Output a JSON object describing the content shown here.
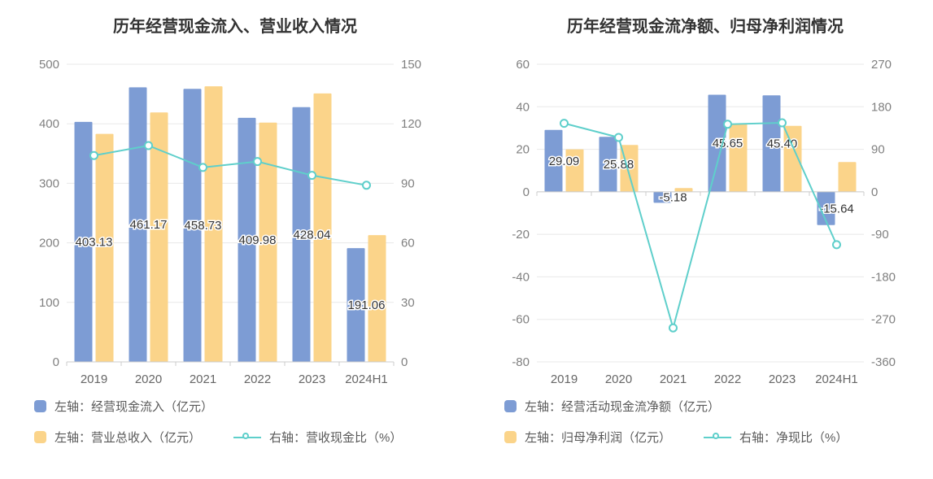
{
  "figure": {
    "background": "#ffffff"
  },
  "colors": {
    "bar_blue": "#7D9CD4",
    "bar_orange": "#FBD48A",
    "line_teal": "#5FCFCB",
    "title_text": "#333333",
    "axis_tick_text": "#808080",
    "category_text": "#666666",
    "bar_value_text": "#333333",
    "legend_text": "#595959",
    "gridline": "#e8e8e8",
    "axis_line": "#cccccc"
  },
  "chart_data": [
    {
      "type": "bar",
      "subtype": "grouped-bar-with-line",
      "title": "历年经营现金流入、营业收入情况",
      "categories": [
        "2019",
        "2020",
        "2021",
        "2022",
        "2023",
        "2024H1"
      ],
      "left_axis": {
        "min": 0,
        "max": 500,
        "ticks": [
          0,
          100,
          200,
          300,
          400,
          500
        ]
      },
      "right_axis": {
        "min": 0,
        "max": 150,
        "ticks": [
          0,
          30,
          60,
          90,
          120,
          150
        ]
      },
      "grid": true,
      "legend_position": "bottom-left",
      "series": [
        {
          "name": "左轴：经营现金流入（亿元）",
          "type": "bar",
          "axis": "left",
          "color": "#7D9CD4",
          "values": [
            403.13,
            461.17,
            458.73,
            409.98,
            428.04,
            191.06
          ],
          "labels": [
            "403.13",
            "461.17",
            "458.73",
            "409.98",
            "428.04",
            "191.06"
          ]
        },
        {
          "name": "左轴：营业总收入（亿元）",
          "type": "bar",
          "axis": "left",
          "color": "#FBD48A",
          "values": [
            383,
            419,
            463,
            402,
            451,
            213
          ]
        },
        {
          "name": "右轴：营收现金比（%）",
          "type": "line",
          "axis": "right",
          "color": "#5FCFCB",
          "values": [
            104,
            109,
            98,
            101,
            94,
            89
          ]
        }
      ]
    },
    {
      "type": "bar",
      "subtype": "grouped-bar-with-line",
      "title": "历年经营现金流净额、归母净利润情况",
      "categories": [
        "2019",
        "2020",
        "2021",
        "2022",
        "2023",
        "2024H1"
      ],
      "left_axis": {
        "min": -80,
        "max": 60,
        "ticks": [
          -80,
          -60,
          -40,
          -20,
          0,
          20,
          40,
          60
        ]
      },
      "right_axis": {
        "min": -360,
        "max": 270,
        "ticks": [
          -360,
          -270,
          -180,
          -90,
          0,
          90,
          180,
          270
        ]
      },
      "grid": true,
      "legend_position": "bottom-left",
      "series": [
        {
          "name": "左轴：经营活动现金流净额（亿元）",
          "type": "bar",
          "axis": "left",
          "color": "#7D9CD4",
          "values": [
            29.09,
            25.88,
            -5.18,
            45.65,
            45.4,
            -15.64
          ],
          "labels": [
            "29.09",
            "25.88",
            "-5.18",
            "45.65",
            "45.40",
            "-15.64"
          ]
        },
        {
          "name": "左轴：归母净利润（亿元）",
          "type": "bar",
          "axis": "left",
          "color": "#FBD48A",
          "values": [
            20,
            22,
            1.8,
            32,
            31,
            14
          ]
        },
        {
          "name": "右轴：净现比（%）",
          "type": "line",
          "axis": "right",
          "color": "#5FCFCB",
          "values": [
            145,
            115,
            -288,
            143,
            146,
            -112
          ]
        }
      ]
    }
  ]
}
